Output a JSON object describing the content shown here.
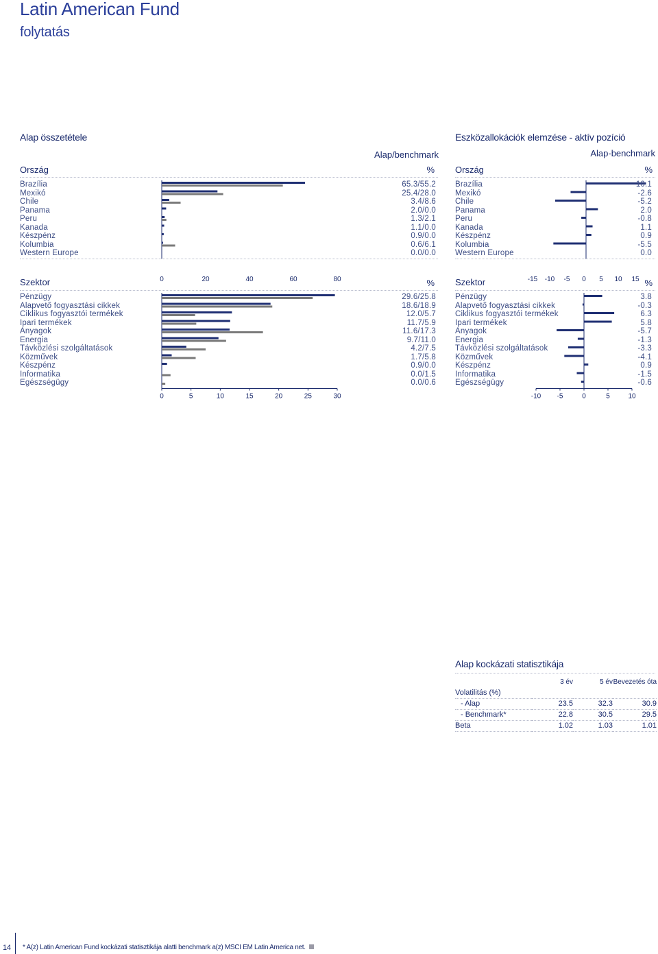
{
  "header": {
    "title": "Latin American Fund",
    "subtitle": "folytatás"
  },
  "composition": {
    "section_title": "Alap összetétele",
    "col_label": "Alap/benchmark",
    "country_label": "Ország",
    "unit": "%",
    "sector_label": "Szektor"
  },
  "active": {
    "section_title": "Eszközallokációk elemzése - aktív pozíció",
    "col_label": "Alap-benchmark",
    "country_label": "Ország",
    "unit": "%",
    "sector_label": "Szektor"
  },
  "colors": {
    "fund": "#1f2f73",
    "benchmark": "#7a7a7a",
    "active": "#1f2f73"
  },
  "chart_data": [
    {
      "type": "bar",
      "orientation": "horizontal",
      "categories": [
        "Brazília",
        "Mexikó",
        "Chile",
        "Panama",
        "Peru",
        "Kanada",
        "Készpénz",
        "Kolumbia",
        "Western Europe"
      ],
      "series": [
        {
          "values": [
            65.3,
            25.4,
            3.4,
            2.0,
            1.3,
            1.1,
            0.9,
            0.6,
            0.0
          ]
        },
        {
          "values": [
            55.2,
            28.0,
            8.6,
            0.0,
            2.1,
            0.0,
            0.0,
            6.1,
            0.0
          ]
        }
      ],
      "labels": [
        "65.3/55.2",
        "25.4/28.0",
        "3.4/8.6",
        "2.0/0.0",
        "1.3/2.1",
        "1.1/0.0",
        "0.9/0.0",
        "0.6/6.1",
        "0.0/0.0"
      ],
      "xlim": [
        0,
        100
      ],
      "ticks": [],
      "tick_labels": []
    },
    {
      "type": "bar",
      "orientation": "horizontal",
      "categories": [
        "Brazília",
        "Mexikó",
        "Chile",
        "Panama",
        "Peru",
        "Kanada",
        "Készpénz",
        "Kolumbia",
        "Western Europe"
      ],
      "series": [
        {
          "values": [
            10.1,
            -2.6,
            -5.2,
            2.0,
            -0.8,
            1.1,
            0.9,
            -5.5,
            0.0
          ]
        }
      ],
      "labels": [
        "10.1",
        "-2.6",
        "-5.2",
        "2.0",
        "-0.8",
        "1.1",
        "0.9",
        "-5.5",
        "0.0"
      ],
      "xlim": [
        -15,
        15
      ],
      "ticks": [],
      "tick_labels": []
    },
    {
      "type": "bar",
      "orientation": "horizontal",
      "categories": [
        "Pénzügy",
        "Alapvető fogyasztási cikkek",
        "Ciklikus fogyasztói termékek",
        "Ipari termékek",
        "Anyagok",
        "Energia",
        "Távközlési szolgáltatások",
        "Közművek",
        "Készpénz",
        "Informatika",
        "Egészségügy"
      ],
      "series": [
        {
          "values": [
            29.6,
            18.6,
            12.0,
            11.7,
            11.6,
            9.7,
            4.2,
            1.7,
            0.9,
            0.0,
            0.0
          ]
        },
        {
          "values": [
            25.8,
            18.9,
            5.7,
            5.9,
            17.3,
            11.0,
            7.5,
            5.8,
            0.0,
            1.5,
            0.6
          ]
        }
      ],
      "labels": [
        "29.6/25.8",
        "18.6/18.9",
        "12.0/5.7",
        "11.7/5.9",
        "11.6/17.3",
        "9.7/11.0",
        "4.2/7.5",
        "1.7/5.8",
        "0.9/0.0",
        "0.0/1.5",
        "0.0/0.6"
      ],
      "xlim": [
        0,
        30
      ],
      "top_ticks": [
        0,
        20,
        40,
        60,
        80
      ],
      "top_tick_labels": [
        "0",
        "20",
        "40",
        "60",
        "80"
      ],
      "top_axis_max": 100,
      "ticks": [
        0,
        5,
        10,
        15,
        20,
        25,
        30
      ],
      "tick_labels": [
        "0",
        "5",
        "10",
        "15",
        "20",
        "25",
        "30"
      ]
    },
    {
      "type": "bar",
      "orientation": "horizontal",
      "categories": [
        "Pénzügy",
        "Alapvető fogyasztási cikkek",
        "Ciklikus fogyasztói termékek",
        "Ipari termékek",
        "Anyagok",
        "Energia",
        "Távközlési szolgáltatások",
        "Közművek",
        "Készpénz",
        "Informatika",
        "Egészségügy"
      ],
      "series": [
        {
          "values": [
            3.8,
            -0.3,
            6.3,
            5.8,
            -5.7,
            -1.3,
            -3.3,
            -4.1,
            0.9,
            -1.5,
            -0.6
          ]
        }
      ],
      "labels": [
        "3.8",
        "-0.3",
        "6.3",
        "5.8",
        "-5.7",
        "-1.3",
        "-3.3",
        "-4.1",
        "0.9",
        "-1.5",
        "-0.6"
      ],
      "xlim": [
        -12.5,
        12.5
      ],
      "top_ticks": [
        -15,
        -10,
        -5,
        0,
        5,
        10,
        15
      ],
      "top_tick_labels": [
        "-15",
        "-10",
        "-5",
        "0",
        "5",
        "10",
        "15"
      ],
      "top_axis_range": [
        -18,
        18
      ],
      "ticks": [
        -10,
        -5,
        0,
        5,
        10
      ],
      "tick_labels": [
        "-10",
        "-5",
        "0",
        "5",
        "10"
      ]
    }
  ],
  "risk": {
    "title": "Alap kockázati statisztikája",
    "headers": [
      "3 év",
      "5 év",
      "Bevezetés óta"
    ],
    "rows": [
      {
        "label": "Volatilitás (%)",
        "values": [
          "",
          "",
          ""
        ]
      },
      {
        "label": "- Alap",
        "values": [
          "23.5",
          "32.3",
          "30.9"
        ]
      },
      {
        "label": "- Benchmark*",
        "values": [
          "22.8",
          "30.5",
          "29.5"
        ]
      },
      {
        "label": "Beta",
        "values": [
          "1.02",
          "1.03",
          "1.01"
        ]
      }
    ]
  },
  "footer": {
    "page_number": "14",
    "note": "* A(z) Latin American Fund  kockázati statisztikája alatti benchmark a(z)  MSCI EM Latin America net."
  }
}
